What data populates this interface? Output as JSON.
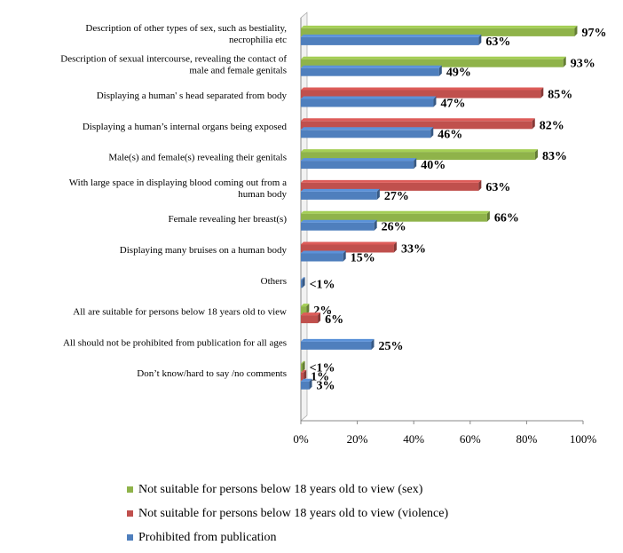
{
  "colors": {
    "sex": "#8fb34a",
    "violence": "#c0504d",
    "prohibited": "#4f7fbd"
  },
  "chart_data": {
    "type": "bar",
    "orientation": "horizontal",
    "xlim": [
      0,
      100
    ],
    "ticks": [
      "0%",
      "20%",
      "40%",
      "60%",
      "80%",
      "100%"
    ],
    "tick_values": [
      0,
      20,
      40,
      60,
      80,
      100
    ],
    "legend": [
      {
        "key": "sex",
        "label": "Not suitable for persons below 18 years old to view (sex)"
      },
      {
        "key": "violence",
        "label": "Not suitable for persons below 18 years old to view (violence)"
      },
      {
        "key": "prohibited",
        "label": "Prohibited from publication"
      }
    ],
    "categories": [
      {
        "lines": [
          "Description of other types of sex, such as bestiality,",
          "necrophilia etc"
        ],
        "bars": [
          {
            "series": "sex",
            "value": 97,
            "label": "97%"
          },
          {
            "series": "prohibited",
            "value": 63,
            "label": "63%"
          }
        ]
      },
      {
        "lines": [
          "Description of sexual intercourse, revealing the contact of",
          "male and female genitals"
        ],
        "bars": [
          {
            "series": "sex",
            "value": 93,
            "label": "93%"
          },
          {
            "series": "prohibited",
            "value": 49,
            "label": "49%"
          }
        ]
      },
      {
        "lines": [
          "Displaying a human' s head separated from body"
        ],
        "bars": [
          {
            "series": "violence",
            "value": 85,
            "label": "85%"
          },
          {
            "series": "prohibited",
            "value": 47,
            "label": "47%"
          }
        ]
      },
      {
        "lines": [
          "Displaying a human’s internal organs being exposed"
        ],
        "bars": [
          {
            "series": "violence",
            "value": 82,
            "label": "82%"
          },
          {
            "series": "prohibited",
            "value": 46,
            "label": "46%"
          }
        ]
      },
      {
        "lines": [
          "Male(s) and female(s) revealing their genitals"
        ],
        "bars": [
          {
            "series": "sex",
            "value": 83,
            "label": "83%"
          },
          {
            "series": "prohibited",
            "value": 40,
            "label": "40%"
          }
        ]
      },
      {
        "lines": [
          "With large space in displaying blood coming out from a",
          "human body"
        ],
        "bars": [
          {
            "series": "violence",
            "value": 63,
            "label": "63%"
          },
          {
            "series": "prohibited",
            "value": 27,
            "label": "27%"
          }
        ]
      },
      {
        "lines": [
          "Female revealing her breast(s)"
        ],
        "bars": [
          {
            "series": "sex",
            "value": 66,
            "label": "66%"
          },
          {
            "series": "prohibited",
            "value": 26,
            "label": "26%"
          }
        ]
      },
      {
        "lines": [
          "Displaying many bruises on a human body"
        ],
        "bars": [
          {
            "series": "violence",
            "value": 33,
            "label": "33%"
          },
          {
            "series": "prohibited",
            "value": 15,
            "label": "15%"
          }
        ]
      },
      {
        "lines": [
          "Others"
        ],
        "bars": [
          {
            "series": "prohibited",
            "value": 0.5,
            "label": "<1%"
          }
        ]
      },
      {
        "lines": [
          "All are suitable for persons below 18 years old to view"
        ],
        "bars": [
          {
            "series": "sex",
            "value": 2,
            "label": "2%"
          },
          {
            "series": "violence",
            "value": 6,
            "label": "6%"
          }
        ]
      },
      {
        "lines": [
          "All should not be prohibited from publication for all ages"
        ],
        "bars": [
          {
            "series": "prohibited",
            "value": 25,
            "label": "25%"
          }
        ]
      },
      {
        "lines": [
          "Don’t know/hard to say /no comments"
        ],
        "bars": [
          {
            "series": "sex",
            "value": 0.5,
            "label": "<1%"
          },
          {
            "series": "violence",
            "value": 1,
            "label": "1%"
          },
          {
            "series": "prohibited",
            "value": 3,
            "label": "3%"
          }
        ]
      }
    ]
  }
}
